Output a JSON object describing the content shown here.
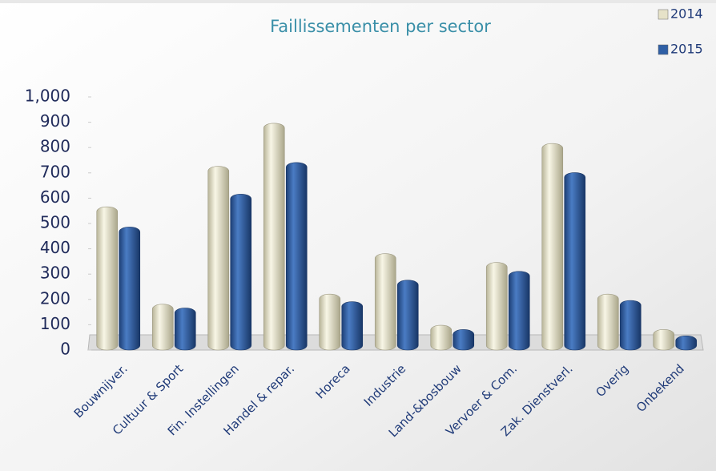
{
  "chart_data": {
    "type": "bar",
    "title": "Faillissementen per sector",
    "categories": [
      "Bouwnijver.",
      "Cultuur & Sport",
      "Fin. Instellingen",
      "Handel & repar.",
      "Horeca",
      "Industrie",
      "Land-&bosbouw",
      "Vervoer & Com.",
      "Zak. Dienstverl.",
      "Overig",
      "Onbekend"
    ],
    "series": [
      {
        "name": "2014",
        "color": "#e6e2c8",
        "values": [
          550,
          165,
          710,
          880,
          205,
          365,
          82,
          330,
          800,
          205,
          65
        ]
      },
      {
        "name": "2015",
        "color": "#2f5fa5",
        "values": [
          470,
          150,
          600,
          725,
          175,
          260,
          65,
          295,
          685,
          180,
          40
        ]
      }
    ],
    "ylim": [
      0,
      1000
    ],
    "yticks": [
      0,
      100,
      200,
      300,
      400,
      500,
      600,
      700,
      800,
      900,
      {
        "value": 1000,
        "label": "1,000"
      }
    ],
    "legend": "top-right"
  }
}
